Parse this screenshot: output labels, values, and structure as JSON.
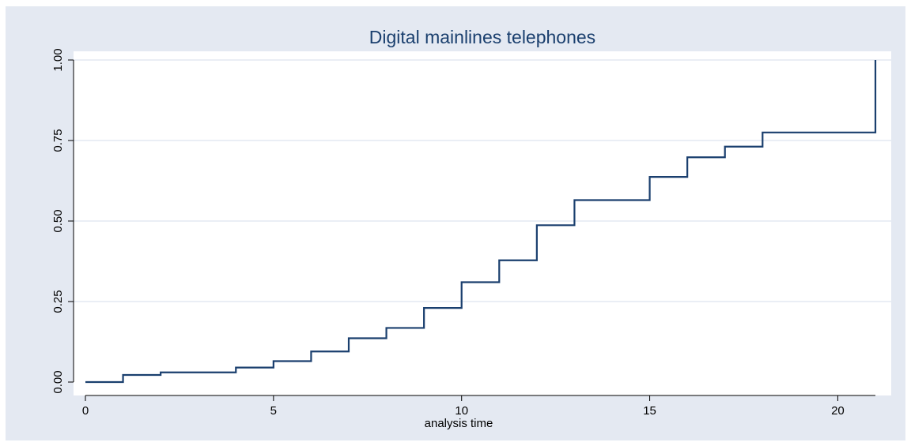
{
  "chart_data": {
    "type": "line",
    "step": true,
    "title": "Digital mainlines telephones",
    "xlabel": "analysis time",
    "ylabel": "",
    "xlim": [
      0,
      21
    ],
    "ylim": [
      0,
      1
    ],
    "x_ticks": [
      0,
      5,
      10,
      15,
      20
    ],
    "y_ticks": [
      0,
      0.25,
      0.5,
      0.75,
      1
    ],
    "x_tick_labels": [
      "0",
      "5",
      "10",
      "15",
      "20"
    ],
    "y_tick_labels": [
      "0.00",
      "0.25",
      "0.50",
      "0.75",
      "1.00"
    ],
    "grid": "horizontal",
    "legend": "none",
    "series": [
      {
        "color": "#1a3f6e",
        "x": [
          0,
          1,
          2,
          4,
          5,
          6,
          7,
          8,
          9,
          10,
          11,
          12,
          13,
          15,
          16,
          17,
          18,
          21
        ],
        "y": [
          0.0,
          0.022,
          0.03,
          0.045,
          0.065,
          0.095,
          0.136,
          0.168,
          0.23,
          0.31,
          0.378,
          0.487,
          0.565,
          0.637,
          0.698,
          0.731,
          0.775,
          1.0
        ]
      }
    ],
    "colors": {
      "background": "#e4e9f2",
      "plot_area": "#ffffff",
      "grid": "#e4e9f2",
      "line": "#1a3f6e",
      "title": "#1a3f6e"
    }
  }
}
